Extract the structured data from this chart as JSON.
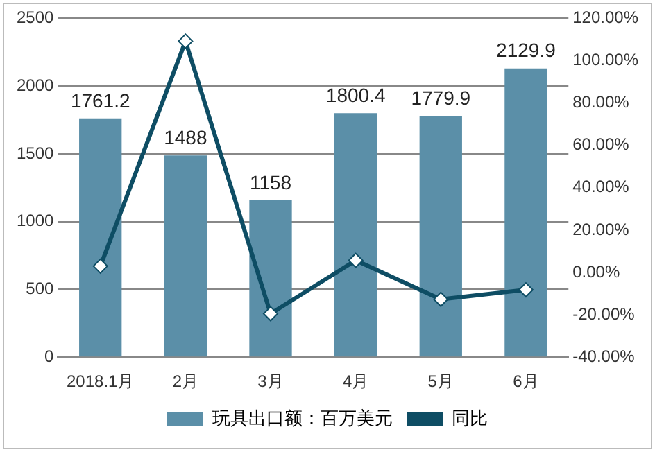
{
  "chart_data": {
    "type": "bar",
    "categories": [
      "2018.1月",
      "2月",
      "3月",
      "4月",
      "5月",
      "6月"
    ],
    "series": [
      {
        "name": "玩具出口额：百万美元",
        "color": "#5b8fa8",
        "values": [
          1761.2,
          1488,
          1158,
          1800.4,
          1779.9,
          2129.9
        ],
        "value_labels": [
          "1761.2",
          "1488",
          "1158",
          "1800.4",
          "1779.9",
          "2129.9"
        ]
      },
      {
        "name": "同比",
        "type": "line",
        "axis": "y2",
        "color": "#0e4d64",
        "marker": "diamond",
        "values": [
          3.0,
          109.2,
          -19.5,
          5.7,
          -12.7,
          -8.2
        ]
      }
    ],
    "ylim": [
      0,
      2500
    ],
    "yticks": [
      0,
      500,
      1000,
      1500,
      2000,
      2500
    ],
    "y2lim": [
      -40,
      120
    ],
    "y2ticks": [
      {
        "value": -40,
        "label": "-40.00%"
      },
      {
        "value": -20,
        "label": "-20.00%"
      },
      {
        "value": 0,
        "label": "0.00%"
      },
      {
        "value": 20,
        "label": "20.00%"
      },
      {
        "value": 40,
        "label": "40.00%"
      },
      {
        "value": 60,
        "label": "60.00%"
      },
      {
        "value": 80,
        "label": "80.00%"
      },
      {
        "value": 100,
        "label": "100.00%"
      },
      {
        "value": 120,
        "label": "120.00%"
      }
    ],
    "grid": "y",
    "legend": "bottom"
  }
}
